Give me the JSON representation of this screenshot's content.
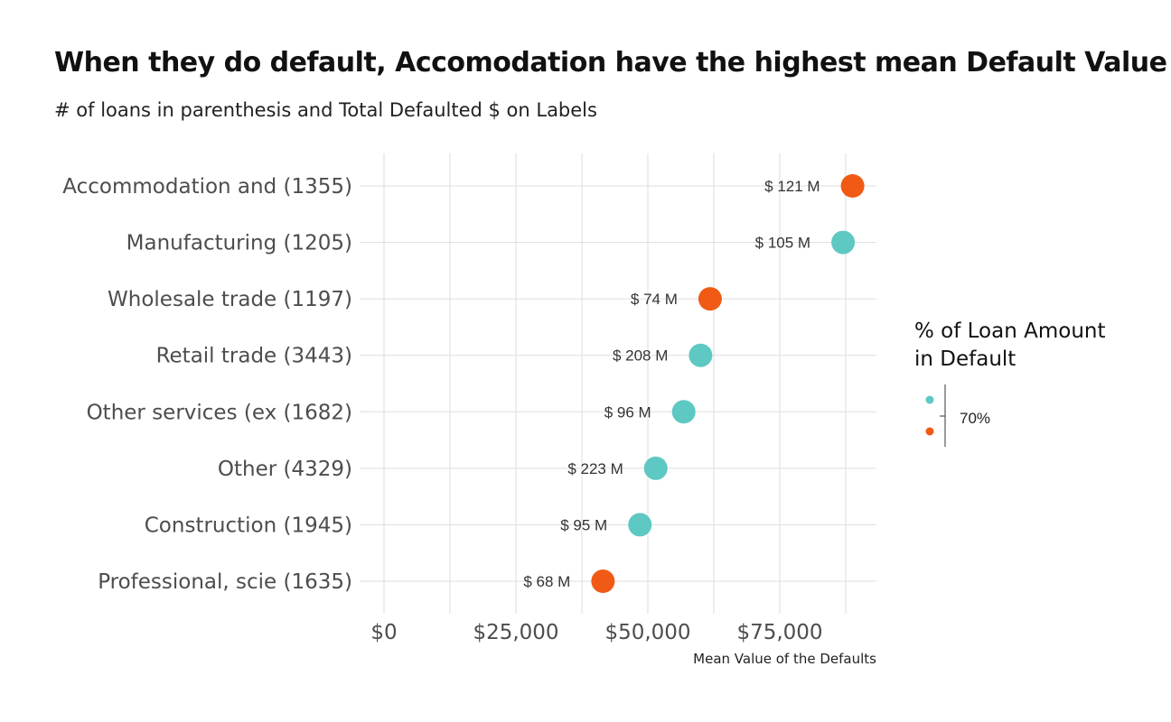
{
  "title": "When they do default, Accomodation have the highest mean Default Value",
  "subtitle": "# of loans in parenthesis and Total Defaulted $ on Labels",
  "chart_data": {
    "type": "scatter",
    "title": "When they do default, Accomodation have the highest mean Default Value",
    "subtitle": "# of loans in parenthesis and Total Defaulted $ on Labels",
    "xlabel": "Mean Value of the Defaults",
    "ylabel": "",
    "xlim": [
      0,
      93000
    ],
    "x_ticks": [
      0,
      25000,
      50000,
      75000
    ],
    "x_tick_labels": [
      "$0",
      "$25,000",
      "$50,000",
      "$75,000"
    ],
    "grid": true,
    "categories": [
      "Accommodation and  (1355)",
      "Manufacturing (1205)",
      "Wholesale trade (1197)",
      "Retail trade (3443)",
      "Other services (ex (1682)",
      "Other (4329)",
      "Construction (1945)",
      "Professional, scie (1635)"
    ],
    "points": [
      {
        "category": "Accommodation and  (1355)",
        "x": 88800,
        "label": "$ 121 M",
        "above_70": true
      },
      {
        "category": "Manufacturing (1205)",
        "x": 87000,
        "label": "$ 105 M",
        "above_70": false
      },
      {
        "category": "Wholesale trade (1197)",
        "x": 61800,
        "label": "$ 74 M",
        "above_70": true
      },
      {
        "category": "Retail trade (3443)",
        "x": 60000,
        "label": "$ 208 M",
        "above_70": false
      },
      {
        "category": "Other services (ex (1682)",
        "x": 56800,
        "label": "$ 96 M",
        "above_70": false
      },
      {
        "category": "Other (4329)",
        "x": 51500,
        "label": "$ 223 M",
        "above_70": false
      },
      {
        "category": "Construction (1945)",
        "x": 48500,
        "label": "$ 95 M",
        "above_70": false
      },
      {
        "category": "Professional, scie (1635)",
        "x": 41500,
        "label": "$ 68 M",
        "above_70": true
      }
    ],
    "legend": {
      "title_line1": "% of Loan Amount",
      "title_line2": "in Default",
      "label": "70%",
      "placement": "right"
    },
    "colors": {
      "below": "#5ec8c2",
      "above": "#f05a14",
      "grid": "#dddddd"
    }
  }
}
